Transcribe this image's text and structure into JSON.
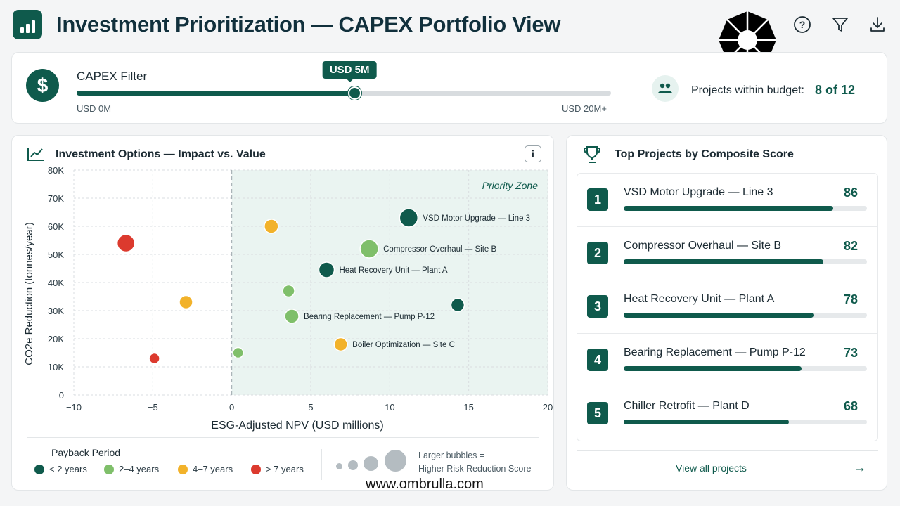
{
  "header": {
    "title": "Investment Prioritization — CAPEX Portfolio View",
    "logo_icon": "bar-chart-icon",
    "icons": [
      "help-icon",
      "filter-icon",
      "download-icon"
    ]
  },
  "watermark": "www.ombrulla.com",
  "filter": {
    "label": "CAPEX Filter",
    "value_label": "USD 5M",
    "min_label": "USD 0M",
    "max_label": "USD 20M+",
    "slider_fraction": 0.52,
    "budget_label": "Projects within budget:",
    "budget_value": "8 of 12"
  },
  "chart_card": {
    "title": "Investment Options — Impact vs. Value",
    "info_label": "i"
  },
  "chart_data": {
    "type": "scatter",
    "title": "Investment Options — Impact vs. Value",
    "xlabel": "ESG-Adjusted NPV (USD millions)",
    "ylabel": "CO2e Reduction (tonnes/year)",
    "xlim": [
      -10,
      20
    ],
    "ylim": [
      0,
      80000
    ],
    "x_ticks": [
      -10,
      -5,
      0,
      5,
      10,
      15,
      20
    ],
    "x_tick_labels": [
      "−10",
      "−5",
      "0",
      "5",
      "10",
      "15",
      "20"
    ],
    "y_ticks": [
      0,
      10000,
      20000,
      30000,
      40000,
      50000,
      60000,
      70000,
      80000
    ],
    "y_tick_labels": [
      "0",
      "10K",
      "20K",
      "30K",
      "40K",
      "50K",
      "60K",
      "70K",
      "80K"
    ],
    "grid": true,
    "priority_zone": {
      "label": "Priority Zone",
      "x_from": 0,
      "x_to": 20
    },
    "points": [
      {
        "x": 11.2,
        "y": 63000,
        "size": 26,
        "cat": 0,
        "label": "VSD Motor Upgrade — Line 3"
      },
      {
        "x": 8.7,
        "y": 52000,
        "size": 26,
        "cat": 1,
        "label": "Compressor Overhaul — Site B"
      },
      {
        "x": 6.0,
        "y": 44500,
        "size": 22,
        "cat": 0,
        "label": "Heat Recovery Unit — Plant A"
      },
      {
        "x": 3.8,
        "y": 28000,
        "size": 20,
        "cat": 1,
        "label": "Bearing Replacement — Pump P-12"
      },
      {
        "x": 6.9,
        "y": 18000,
        "size": 19,
        "cat": 2,
        "label": "Boiler Optimization — Site C"
      },
      {
        "x": 2.5,
        "y": 60000,
        "size": 20,
        "cat": 2,
        "label": ""
      },
      {
        "x": 3.6,
        "y": 37000,
        "size": 17,
        "cat": 1,
        "label": ""
      },
      {
        "x": 14.3,
        "y": 32000,
        "size": 19,
        "cat": 0,
        "label": ""
      },
      {
        "x": 0.4,
        "y": 15000,
        "size": 15,
        "cat": 1,
        "label": ""
      },
      {
        "x": -6.7,
        "y": 54000,
        "size": 25,
        "cat": 3,
        "label": ""
      },
      {
        "x": -2.9,
        "y": 33000,
        "size": 19,
        "cat": 2,
        "label": ""
      },
      {
        "x": -4.9,
        "y": 13000,
        "size": 15,
        "cat": 3,
        "label": ""
      }
    ],
    "legend": {
      "title": "Payback Period",
      "items": [
        {
          "label": "< 2 years",
          "color": "#0f5a4c"
        },
        {
          "label": "2–4 years",
          "color": "#7fbf6a"
        },
        {
          "label": "4–7 years",
          "color": "#f2b22a"
        },
        {
          "label": "> 7 years",
          "color": "#dc3a2e"
        }
      ],
      "size_note_line1": "Larger bubbles =",
      "size_note_line2": "Higher Risk Reduction Score"
    }
  },
  "ranking": {
    "title": "Top Projects by Composite Score",
    "items": [
      {
        "rank": "1",
        "name": "VSD Motor Upgrade — Line 3",
        "score": "86"
      },
      {
        "rank": "2",
        "name": "Compressor Overhaul — Site B",
        "score": "82"
      },
      {
        "rank": "3",
        "name": "Heat Recovery Unit — Plant A",
        "score": "78"
      },
      {
        "rank": "4",
        "name": "Bearing Replacement — Pump P-12",
        "score": "73"
      },
      {
        "rank": "5",
        "name": "Chiller Retrofit — Plant D",
        "score": "68"
      }
    ],
    "view_all": "View all projects"
  },
  "colors": {
    "accent": "#0f5a4c",
    "priority_zone": "#eaf4f1"
  }
}
